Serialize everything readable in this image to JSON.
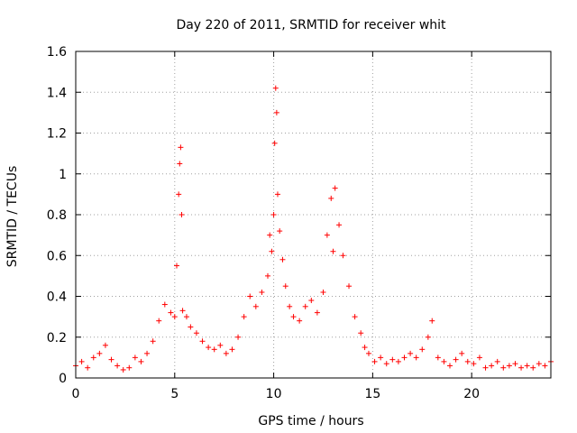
{
  "chart_data": {
    "type": "scatter",
    "title": "Day 220 of 2011, SRMTID for receiver whit",
    "xlabel": "GPS time / hours",
    "ylabel": "SRMTID / TECUs",
    "xlim": [
      0,
      24
    ],
    "ylim": [
      0,
      1.6
    ],
    "xticks": [
      0,
      5,
      10,
      15,
      20
    ],
    "xtick_labels": [
      "0",
      "5",
      "10",
      "15",
      "20"
    ],
    "yticks": [
      0,
      0.2,
      0.4,
      0.6,
      0.8,
      1,
      1.2,
      1.4,
      1.6
    ],
    "ytick_labels": [
      "0",
      "0.2",
      "0.4",
      "0.6",
      "0.8",
      "1",
      "1.2",
      "1.4",
      "1.6"
    ],
    "grid": true,
    "marker": "+",
    "color": "#ff0000",
    "series": [
      {
        "name": "SRMTID",
        "x": [
          0.0,
          0.3,
          0.6,
          0.9,
          1.2,
          1.5,
          1.8,
          2.1,
          2.4,
          2.7,
          3.0,
          3.3,
          3.6,
          3.9,
          4.2,
          4.5,
          4.8,
          5.0,
          5.1,
          5.2,
          5.25,
          5.3,
          5.35,
          5.4,
          5.6,
          5.8,
          6.1,
          6.4,
          6.7,
          7.0,
          7.3,
          7.6,
          7.9,
          8.2,
          8.5,
          8.8,
          9.1,
          9.4,
          9.7,
          9.8,
          9.9,
          10.0,
          10.05,
          10.1,
          10.15,
          10.2,
          10.3,
          10.45,
          10.6,
          10.8,
          11.0,
          11.3,
          11.6,
          11.9,
          12.2,
          12.5,
          12.7,
          12.9,
          13.0,
          13.1,
          13.3,
          13.5,
          13.8,
          14.1,
          14.4,
          14.6,
          14.8,
          15.1,
          15.4,
          15.7,
          16.0,
          16.3,
          16.6,
          16.9,
          17.2,
          17.5,
          17.8,
          18.0,
          18.3,
          18.6,
          18.9,
          19.2,
          19.5,
          19.8,
          20.1,
          20.4,
          20.7,
          21.0,
          21.3,
          21.6,
          21.9,
          22.2,
          22.5,
          22.8,
          23.1,
          23.4,
          23.7,
          24.0
        ],
        "y": [
          0.06,
          0.08,
          0.05,
          0.1,
          0.12,
          0.16,
          0.09,
          0.06,
          0.04,
          0.05,
          0.1,
          0.08,
          0.12,
          0.18,
          0.28,
          0.36,
          0.32,
          0.3,
          0.55,
          0.9,
          1.05,
          1.13,
          0.8,
          0.33,
          0.3,
          0.25,
          0.22,
          0.18,
          0.15,
          0.14,
          0.16,
          0.12,
          0.14,
          0.2,
          0.3,
          0.4,
          0.35,
          0.42,
          0.5,
          0.7,
          0.62,
          0.8,
          1.15,
          1.42,
          1.3,
          0.9,
          0.72,
          0.58,
          0.45,
          0.35,
          0.3,
          0.28,
          0.35,
          0.38,
          0.32,
          0.42,
          0.7,
          0.88,
          0.62,
          0.93,
          0.75,
          0.6,
          0.45,
          0.3,
          0.22,
          0.15,
          0.12,
          0.08,
          0.1,
          0.07,
          0.09,
          0.08,
          0.1,
          0.12,
          0.1,
          0.14,
          0.2,
          0.28,
          0.1,
          0.08,
          0.06,
          0.09,
          0.12,
          0.08,
          0.07,
          0.1,
          0.05,
          0.06,
          0.08,
          0.05,
          0.06,
          0.07,
          0.05,
          0.06,
          0.05,
          0.07,
          0.06,
          0.08
        ]
      }
    ]
  }
}
